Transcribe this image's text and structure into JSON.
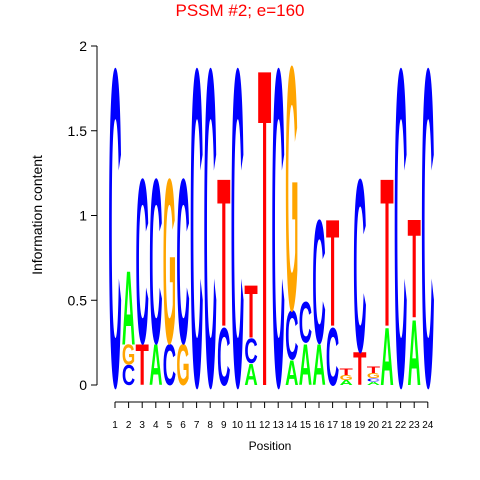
{
  "chart_data": {
    "type": "logo",
    "title": "PSSM #2; e=160",
    "xlabel": "Position",
    "ylabel": "Information content",
    "categories": [
      "1",
      "2",
      "3",
      "4",
      "5",
      "6",
      "7",
      "8",
      "9",
      "10",
      "11",
      "12",
      "13",
      "14",
      "15",
      "16",
      "17",
      "18",
      "19",
      "20",
      "21",
      "22",
      "23",
      "24"
    ],
    "series": [
      {
        "name": "A",
        "color": "#00ff00",
        "values": [
          0,
          0.45,
          0,
          0.25,
          0,
          0,
          0,
          0,
          0,
          0,
          0.13,
          0,
          0,
          0.15,
          0.25,
          0.25,
          0,
          0.03,
          0,
          0.02,
          0.35,
          0,
          0.4,
          0
        ]
      },
      {
        "name": "C",
        "color": "#0000ff",
        "values": [
          1.93,
          0.12,
          1.0,
          1.0,
          0.25,
          1.0,
          1.93,
          1.93,
          0.35,
          1.93,
          0.15,
          0,
          1.93,
          0.3,
          0.25,
          0.75,
          0.35,
          0,
          1.05,
          0.02,
          0,
          1.93,
          0,
          1.93
        ]
      },
      {
        "name": "G",
        "color": "#ffa500",
        "values": [
          0,
          0.12,
          0,
          0,
          1.0,
          0.25,
          0,
          0,
          0,
          0,
          0,
          0,
          0,
          1.48,
          0,
          0,
          0,
          0.03,
          0,
          0.03,
          0,
          0,
          0,
          0
        ]
      },
      {
        "name": "T",
        "color": "#ff0000",
        "values": [
          0,
          0,
          0.25,
          0,
          0,
          0,
          0,
          0,
          0.9,
          0,
          0.32,
          1.93,
          0,
          0,
          0,
          0,
          0.65,
          0.04,
          0.2,
          0.04,
          0.9,
          0,
          0.6,
          0
        ]
      }
    ],
    "ylim": [
      0,
      2
    ],
    "yticks": [
      0,
      0.5,
      1,
      1.5,
      2
    ],
    "title_color": "#ff0000"
  }
}
